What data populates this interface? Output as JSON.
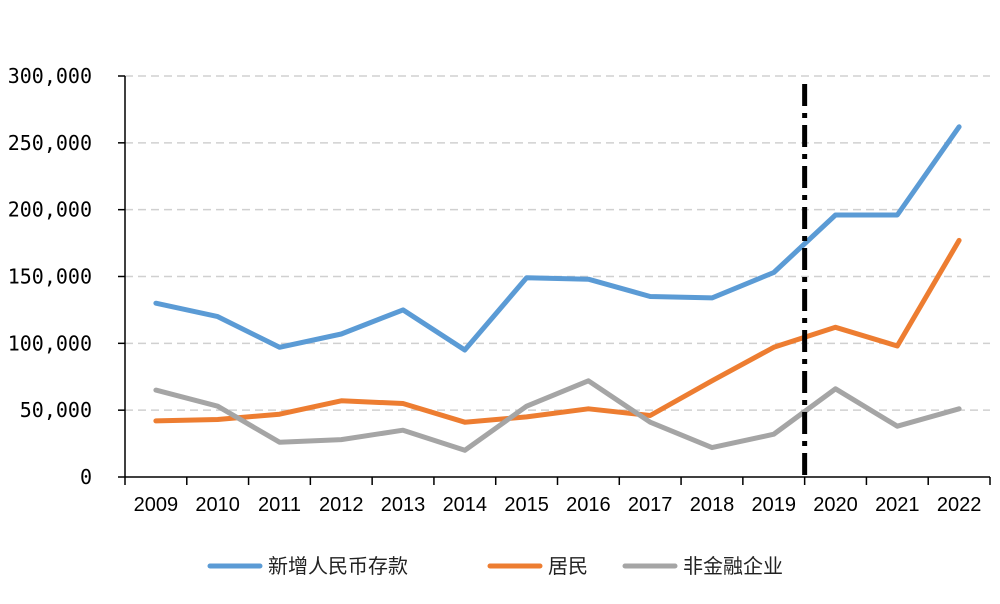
{
  "chart_data": {
    "type": "line",
    "categories": [
      "2009",
      "2010",
      "2011",
      "2012",
      "2013",
      "2014",
      "2015",
      "2016",
      "2017",
      "2018",
      "2019",
      "2020",
      "2021",
      "2022"
    ],
    "ylim": [
      0,
      300000
    ],
    "yticks": [
      0,
      50000,
      100000,
      150000,
      200000,
      250000,
      300000
    ],
    "ytick_labels": [
      "0",
      "50,000",
      "100,000",
      "150,000",
      "200,000",
      "250,000",
      "300,000"
    ],
    "grid": "horizontal dashed",
    "legend": "bottom",
    "marker_line": {
      "between": [
        "2019",
        "2020"
      ],
      "style": "dash-dot",
      "color": "#000000"
    },
    "series": [
      {
        "name": "新增人民币存款",
        "color": "#5B9BD5",
        "values": [
          130000,
          120000,
          97000,
          107000,
          125000,
          95000,
          149000,
          148000,
          135000,
          134000,
          153000,
          196000,
          196000,
          262000
        ]
      },
      {
        "name": "居民",
        "color": "#ED7D31",
        "values": [
          42000,
          43000,
          47000,
          57000,
          55000,
          41000,
          45000,
          51000,
          46000,
          72000,
          97000,
          112000,
          98000,
          177000
        ]
      },
      {
        "name": "非金融企业",
        "color": "#A5A5A5",
        "values": [
          65000,
          53000,
          26000,
          28000,
          35000,
          20000,
          53000,
          72000,
          41000,
          22000,
          32000,
          66000,
          38000,
          51000
        ]
      }
    ]
  }
}
